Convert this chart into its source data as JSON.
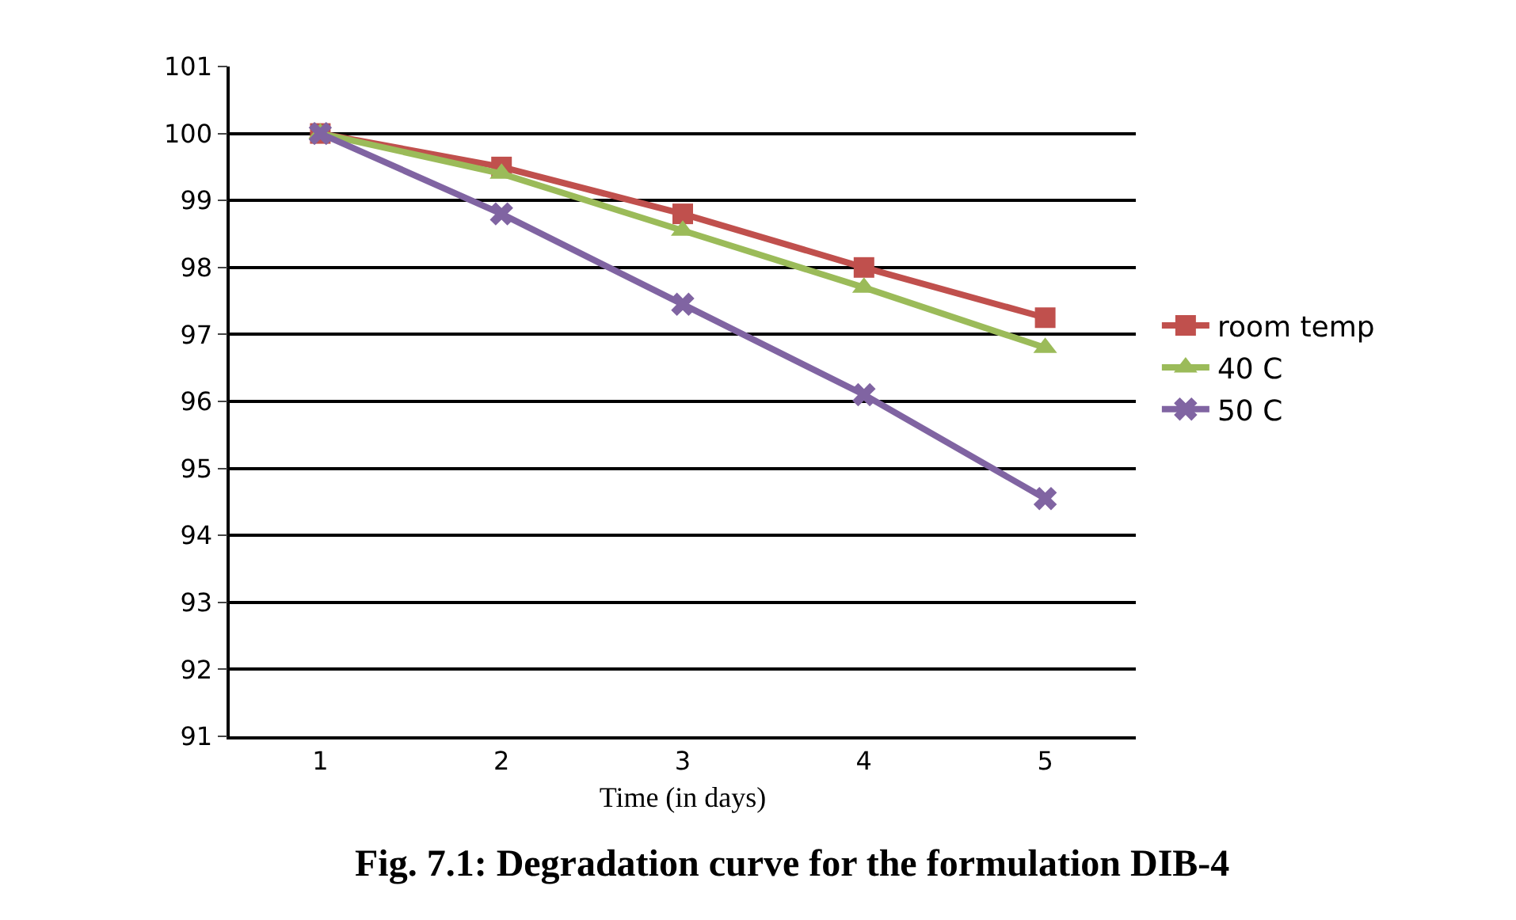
{
  "chart_data": {
    "type": "line",
    "xlabel": "Time (in days)",
    "categories": [
      "1",
      "2",
      "3",
      "4",
      "5"
    ],
    "series": [
      {
        "name": "room temp",
        "color": "#c0504d",
        "marker": "square",
        "values": [
          100,
          99.5,
          98.8,
          98.0,
          97.25
        ]
      },
      {
        "name": "40 C",
        "color": "#9bbb59",
        "marker": "triangle",
        "values": [
          100,
          99.4,
          98.55,
          97.7,
          96.8
        ]
      },
      {
        "name": "50 C",
        "color": "#8064a2",
        "marker": "cross",
        "values": [
          100,
          98.8,
          97.45,
          96.1,
          94.55
        ]
      }
    ],
    "ylim": [
      91,
      101
    ],
    "yticks": [
      91,
      92,
      93,
      94,
      95,
      96,
      97,
      98,
      99,
      100,
      101
    ],
    "grid": "y",
    "legend": "right",
    "annotations": [
      "Fig. 7.1: Degradation curve for the formulation DIB-4"
    ]
  }
}
